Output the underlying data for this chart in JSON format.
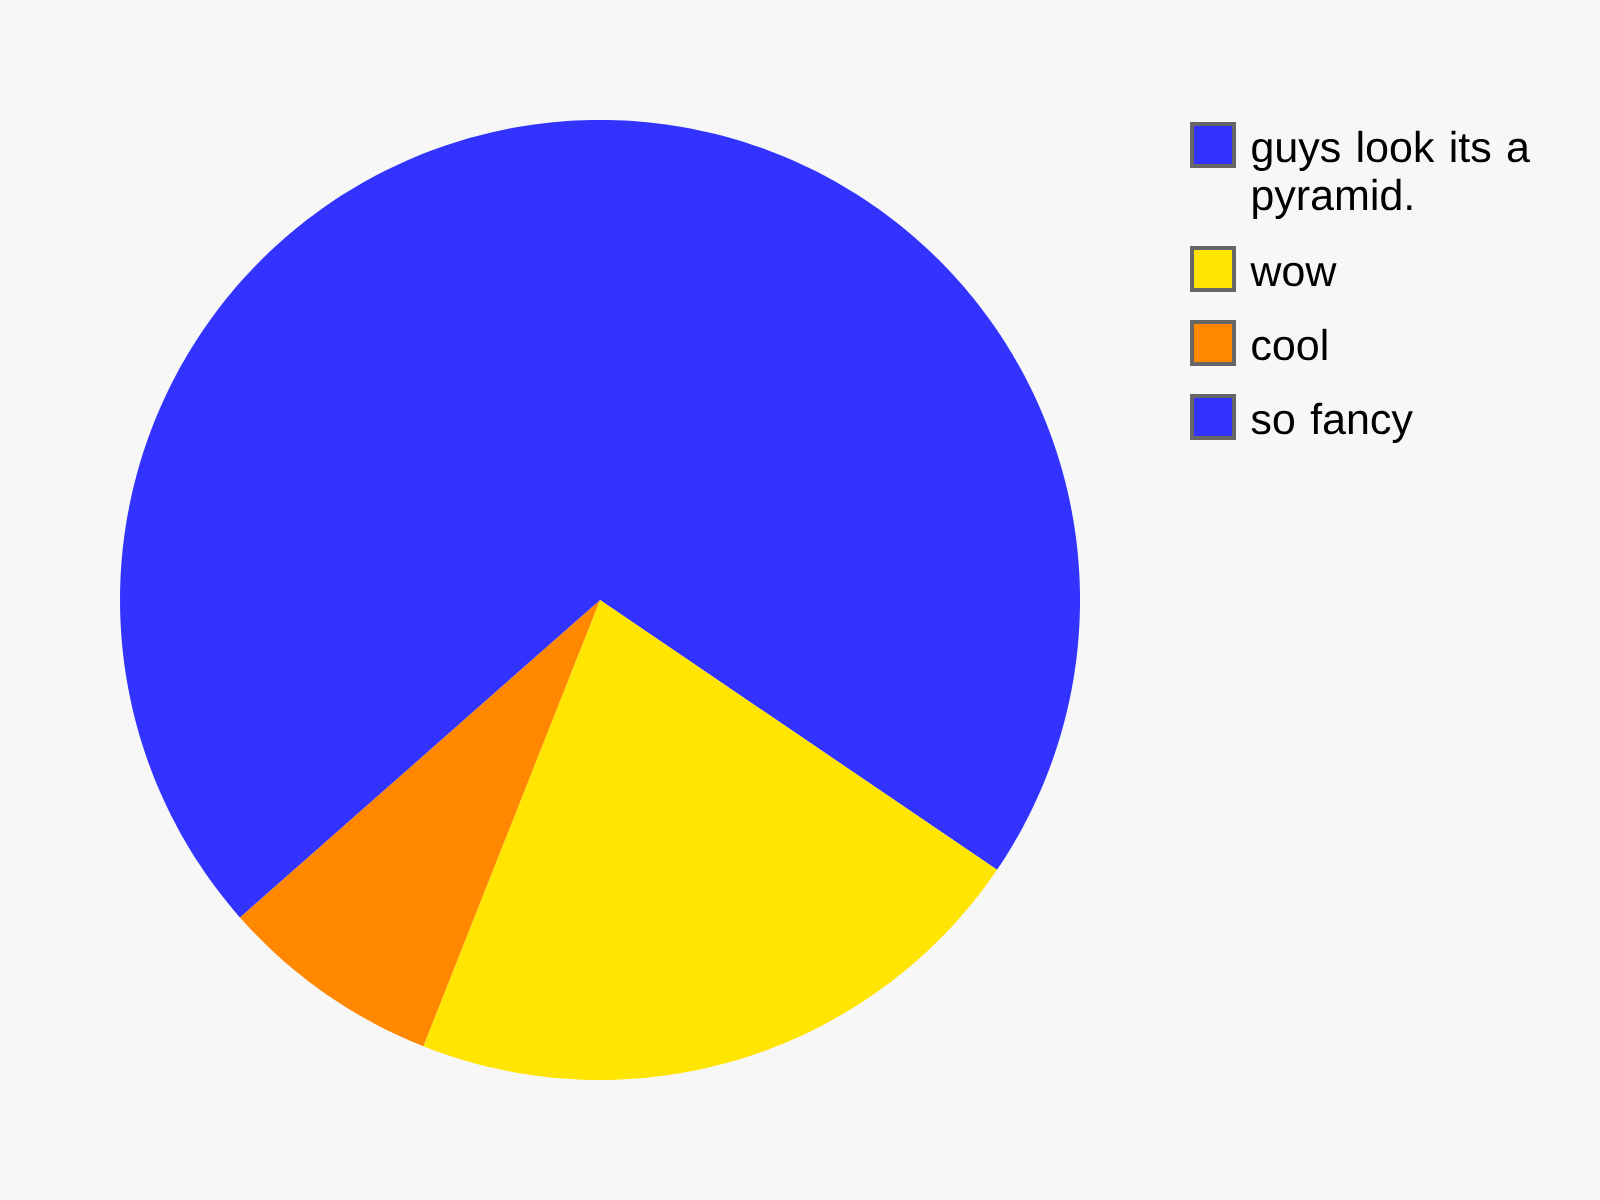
{
  "chart_data": {
    "type": "pie",
    "categories": [
      "guys look its a pyramid.",
      "wow",
      "cool",
      "so fancy"
    ],
    "values": [
      34.5,
      21.5,
      7.5,
      36.5
    ],
    "colors": [
      "#3333ff",
      "#ffe500",
      "#ff8800",
      "#3333ff"
    ],
    "legend": "top right"
  }
}
